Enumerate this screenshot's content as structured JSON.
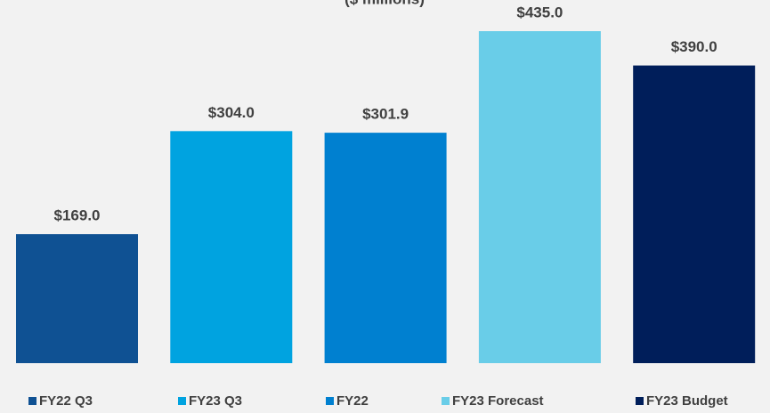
{
  "chart_data": {
    "type": "bar",
    "subtitle": "($ millions)",
    "categories": [
      "FY22 Q3",
      "FY23 Q3",
      "FY22",
      "FY23 Forecast",
      "FY23 Budget"
    ],
    "values": [
      169.0,
      304.0,
      301.9,
      435.0,
      390.0
    ],
    "value_labels": [
      "$169.0",
      "$304.0",
      "$301.9",
      "$435.0",
      "$390.0"
    ],
    "colors": [
      "#0f5193",
      "#00a3e0",
      "#0080d0",
      "#69cde8",
      "#001e5a"
    ]
  }
}
